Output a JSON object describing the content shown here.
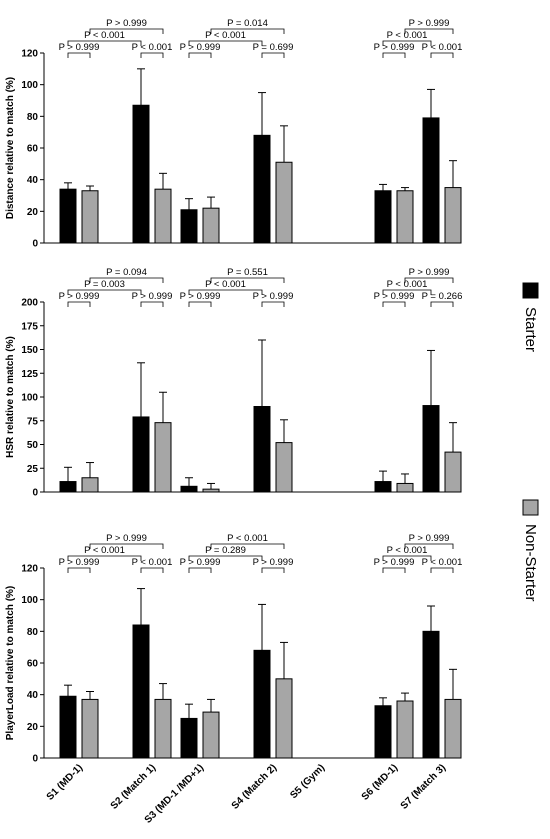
{
  "colors": {
    "starter": "#000000",
    "non_starter": "#a6a6a6"
  },
  "legend": [
    {
      "label": "Starter",
      "color": "#000000"
    },
    {
      "label": "Non-Starter",
      "color": "#a6a6a6"
    }
  ],
  "chart_data": [
    {
      "type": "bar",
      "ylabel": "Distance relative to match (%)",
      "ylim": [
        0,
        120
      ],
      "yticks": [
        0,
        20,
        40,
        60,
        80,
        100,
        120
      ],
      "categories": [
        "S1 (MD-1)",
        "S2 (Match 1)",
        "S3 (MD-1 /MD+1)",
        "S4 (Match 2)",
        "S5 (Gym)",
        "S6 (MD-1)",
        "S7 (Match 3)"
      ],
      "series": [
        {
          "name": "Starter",
          "values": [
            34,
            87,
            21,
            68,
            null,
            33,
            79
          ],
          "errors": [
            4,
            23,
            7,
            27,
            null,
            4,
            18
          ]
        },
        {
          "name": "Non-Starter",
          "values": [
            33,
            34,
            22,
            51,
            null,
            33,
            35
          ],
          "errors": [
            3,
            10,
            7,
            23,
            null,
            2,
            17
          ]
        }
      ],
      "comparisons": [
        {
          "from": [
            0,
            0
          ],
          "to": [
            0,
            1
          ],
          "label": "P > 0.999",
          "level": 0
        },
        {
          "from": [
            1,
            0
          ],
          "to": [
            1,
            1
          ],
          "label": "P < 0.001",
          "level": 0
        },
        {
          "from": [
            0,
            0
          ],
          "to": [
            1,
            0
          ],
          "label": "P < 0.001",
          "level": 1
        },
        {
          "from": [
            0,
            1
          ],
          "to": [
            1,
            1
          ],
          "label": "P > 0.999",
          "level": 2
        },
        {
          "from": [
            2,
            0
          ],
          "to": [
            2,
            1
          ],
          "label": "P > 0.999",
          "level": 0
        },
        {
          "from": [
            3,
            0
          ],
          "to": [
            3,
            1
          ],
          "label": "P = 0.699",
          "level": 0
        },
        {
          "from": [
            2,
            0
          ],
          "to": [
            3,
            0
          ],
          "label": "P < 0.001",
          "level": 1
        },
        {
          "from": [
            2,
            1
          ],
          "to": [
            3,
            1
          ],
          "label": "P = 0.014",
          "level": 2
        },
        {
          "from": [
            5,
            0
          ],
          "to": [
            5,
            1
          ],
          "label": "P > 0.999",
          "level": 0
        },
        {
          "from": [
            6,
            0
          ],
          "to": [
            6,
            1
          ],
          "label": "P < 0.001",
          "level": 0
        },
        {
          "from": [
            5,
            0
          ],
          "to": [
            6,
            0
          ],
          "label": "P < 0.001",
          "level": 1
        },
        {
          "from": [
            5,
            1
          ],
          "to": [
            6,
            1
          ],
          "label": "P > 0.999",
          "level": 2
        }
      ]
    },
    {
      "type": "bar",
      "ylabel": "HSR relative to match (%)",
      "ylim": [
        0,
        200
      ],
      "yticks": [
        0,
        25,
        50,
        75,
        100,
        125,
        150,
        175,
        200
      ],
      "categories": [
        "S1 (MD-1)",
        "S2 (Match 1)",
        "S3 (MD-1 /MD+1)",
        "S4 (Match 2)",
        "S5 (Gym)",
        "S6 (MD-1)",
        "S7 (Match 3)"
      ],
      "series": [
        {
          "name": "Starter",
          "values": [
            11,
            79,
            6,
            90,
            null,
            11,
            91
          ],
          "errors": [
            15,
            57,
            9,
            70,
            null,
            11,
            58
          ]
        },
        {
          "name": "Non-Starter",
          "values": [
            15,
            73,
            3,
            52,
            null,
            9,
            42
          ],
          "errors": [
            16,
            32,
            6,
            24,
            null,
            10,
            31
          ]
        }
      ],
      "comparisons": [
        {
          "from": [
            0,
            0
          ],
          "to": [
            0,
            1
          ],
          "label": "P > 0.999",
          "level": 0
        },
        {
          "from": [
            1,
            0
          ],
          "to": [
            1,
            1
          ],
          "label": "P > 0.999",
          "level": 0
        },
        {
          "from": [
            0,
            0
          ],
          "to": [
            1,
            0
          ],
          "label": "P = 0.003",
          "level": 1
        },
        {
          "from": [
            0,
            1
          ],
          "to": [
            1,
            1
          ],
          "label": "P = 0.094",
          "level": 2
        },
        {
          "from": [
            2,
            0
          ],
          "to": [
            2,
            1
          ],
          "label": "P > 0.999",
          "level": 0
        },
        {
          "from": [
            3,
            0
          ],
          "to": [
            3,
            1
          ],
          "label": "P > 0.999",
          "level": 0
        },
        {
          "from": [
            2,
            0
          ],
          "to": [
            3,
            0
          ],
          "label": "P < 0.001",
          "level": 1
        },
        {
          "from": [
            2,
            1
          ],
          "to": [
            3,
            1
          ],
          "label": "P = 0.551",
          "level": 2
        },
        {
          "from": [
            5,
            0
          ],
          "to": [
            5,
            1
          ],
          "label": "P > 0.999",
          "level": 0
        },
        {
          "from": [
            6,
            0
          ],
          "to": [
            6,
            1
          ],
          "label": "P = 0.266",
          "level": 0
        },
        {
          "from": [
            5,
            0
          ],
          "to": [
            6,
            0
          ],
          "label": "P < 0.001",
          "level": 1
        },
        {
          "from": [
            5,
            1
          ],
          "to": [
            6,
            1
          ],
          "label": "P > 0.999",
          "level": 2
        }
      ]
    },
    {
      "type": "bar",
      "ylabel": "PlayerLoad relative to match (%)",
      "ylim": [
        0,
        120
      ],
      "yticks": [
        0,
        20,
        40,
        60,
        80,
        100,
        120
      ],
      "categories": [
        "S1 (MD-1)",
        "S2 (Match 1)",
        "S3 (MD-1 /MD+1)",
        "S4 (Match 2)",
        "S5 (Gym)",
        "S6 (MD-1)",
        "S7 (Match 3)"
      ],
      "series": [
        {
          "name": "Starter",
          "values": [
            39,
            84,
            25,
            68,
            null,
            33,
            80
          ],
          "errors": [
            7,
            23,
            9,
            29,
            null,
            5,
            16
          ]
        },
        {
          "name": "Non-Starter",
          "values": [
            37,
            37,
            29,
            50,
            null,
            36,
            37
          ],
          "errors": [
            5,
            10,
            8,
            23,
            null,
            5,
            19
          ]
        }
      ],
      "comparisons": [
        {
          "from": [
            0,
            0
          ],
          "to": [
            0,
            1
          ],
          "label": "P > 0.999",
          "level": 0
        },
        {
          "from": [
            1,
            0
          ],
          "to": [
            1,
            1
          ],
          "label": "P < 0.001",
          "level": 0
        },
        {
          "from": [
            0,
            0
          ],
          "to": [
            1,
            0
          ],
          "label": "P < 0.001",
          "level": 1
        },
        {
          "from": [
            0,
            1
          ],
          "to": [
            1,
            1
          ],
          "label": "P > 0.999",
          "level": 2
        },
        {
          "from": [
            2,
            0
          ],
          "to": [
            2,
            1
          ],
          "label": "P > 0.999",
          "level": 0
        },
        {
          "from": [
            3,
            0
          ],
          "to": [
            3,
            1
          ],
          "label": "P > 0.999",
          "level": 0
        },
        {
          "from": [
            2,
            0
          ],
          "to": [
            3,
            0
          ],
          "label": "P = 0.289",
          "level": 1
        },
        {
          "from": [
            2,
            1
          ],
          "to": [
            3,
            1
          ],
          "label": "P < 0.001",
          "level": 2
        },
        {
          "from": [
            5,
            0
          ],
          "to": [
            5,
            1
          ],
          "label": "P > 0.999",
          "level": 0
        },
        {
          "from": [
            6,
            0
          ],
          "to": [
            6,
            1
          ],
          "label": "P < 0.001",
          "level": 0
        },
        {
          "from": [
            5,
            0
          ],
          "to": [
            6,
            0
          ],
          "label": "P < 0.001",
          "level": 1
        },
        {
          "from": [
            5,
            1
          ],
          "to": [
            6,
            1
          ],
          "label": "P > 0.999",
          "level": 2
        }
      ]
    }
  ]
}
